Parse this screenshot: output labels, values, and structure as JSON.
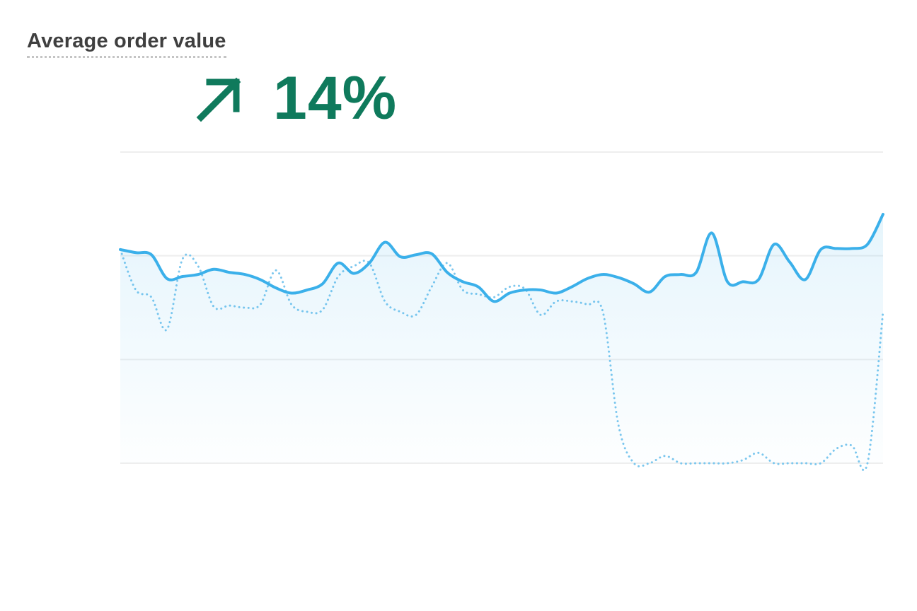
{
  "title": "Average order value",
  "change": "14%",
  "chart_data": {
    "type": "line",
    "ylim": [
      0,
      3
    ],
    "yticks": [
      0,
      1,
      2,
      3
    ],
    "grid": true,
    "fill_under_first": true,
    "series": [
      {
        "color": "#3bb0ea",
        "style": "solid",
        "values": [
          2.06,
          2.03,
          2.01,
          1.78,
          1.8,
          1.82,
          1.87,
          1.84,
          1.82,
          1.77,
          1.69,
          1.64,
          1.67,
          1.73,
          1.93,
          1.83,
          1.93,
          2.13,
          1.99,
          2.01,
          2.02,
          1.84,
          1.75,
          1.7,
          1.56,
          1.64,
          1.67,
          1.67,
          1.64,
          1.7,
          1.78,
          1.82,
          1.79,
          1.73,
          1.65,
          1.8,
          1.82,
          1.84,
          2.22,
          1.75,
          1.75,
          1.77,
          2.11,
          1.94,
          1.77,
          2.06,
          2.07,
          2.07,
          2.11,
          2.4
        ]
      },
      {
        "color": "#7cc7ee",
        "style": "dotted",
        "values": [
          2.06,
          1.67,
          1.6,
          1.29,
          1.97,
          1.9,
          1.51,
          1.52,
          1.5,
          1.53,
          1.86,
          1.53,
          1.46,
          1.48,
          1.8,
          1.9,
          1.93,
          1.56,
          1.46,
          1.43,
          1.7,
          1.93,
          1.67,
          1.63,
          1.6,
          1.7,
          1.68,
          1.43,
          1.56,
          1.56,
          1.53,
          1.46,
          0.37,
          0,
          0,
          0.07,
          0,
          0,
          0,
          0,
          0.03,
          0.1,
          0,
          0,
          0,
          0,
          0.14,
          0.17,
          0,
          1.46
        ]
      }
    ]
  }
}
